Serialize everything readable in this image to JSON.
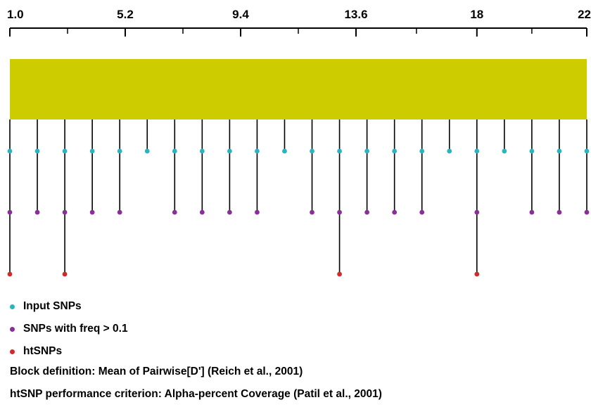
{
  "colors": {
    "block": "#cccc00",
    "input": "#2ab4c0",
    "freq": "#8a2e9a",
    "htsnp": "#d22a2a",
    "axis": "#000000"
  },
  "chart_data": {
    "type": "scatter",
    "x_range": [
      1.0,
      22
    ],
    "ticks": [
      {
        "value": 1.0,
        "label": "1.0"
      },
      {
        "value": 5.2,
        "label": "5.2"
      },
      {
        "value": 9.4,
        "label": "9.4"
      },
      {
        "value": 13.6,
        "label": "13.6"
      },
      {
        "value": 18,
        "label": "18"
      },
      {
        "value": 22,
        "label": "22"
      }
    ],
    "block": {
      "start": 1.0,
      "end": 22
    },
    "series": [
      {
        "key": "input",
        "values": [
          1.0,
          2.0,
          3.0,
          4.0,
          5.0,
          6.0,
          7.0,
          8.0,
          9.0,
          10.0,
          11.0,
          12.0,
          13.0,
          14.0,
          15.0,
          16.0,
          17.0,
          18.0,
          19.0,
          20.0,
          21.0,
          22.0
        ]
      },
      {
        "key": "freq",
        "values": [
          1.0,
          2.0,
          3.0,
          4.0,
          5.0,
          7.0,
          8.0,
          9.0,
          10.0,
          12.0,
          13.0,
          14.0,
          15.0,
          16.0,
          18.0,
          20.0,
          21.0,
          22.0
        ]
      },
      {
        "key": "htsnp",
        "values": [
          1.0,
          3.0,
          13.0,
          18.0
        ]
      }
    ]
  },
  "legend": {
    "input": "Input SNPs",
    "freq": "SNPs with freq > 0.1",
    "htsnp": "htSNPs"
  },
  "info": {
    "block_definition": "Block definition: Mean of Pairwise[D'] (Reich et al., 2001)",
    "htsnp_criterion": "htSNP performance criterion: Alpha-percent Coverage (Patil et al., 2001)"
  }
}
